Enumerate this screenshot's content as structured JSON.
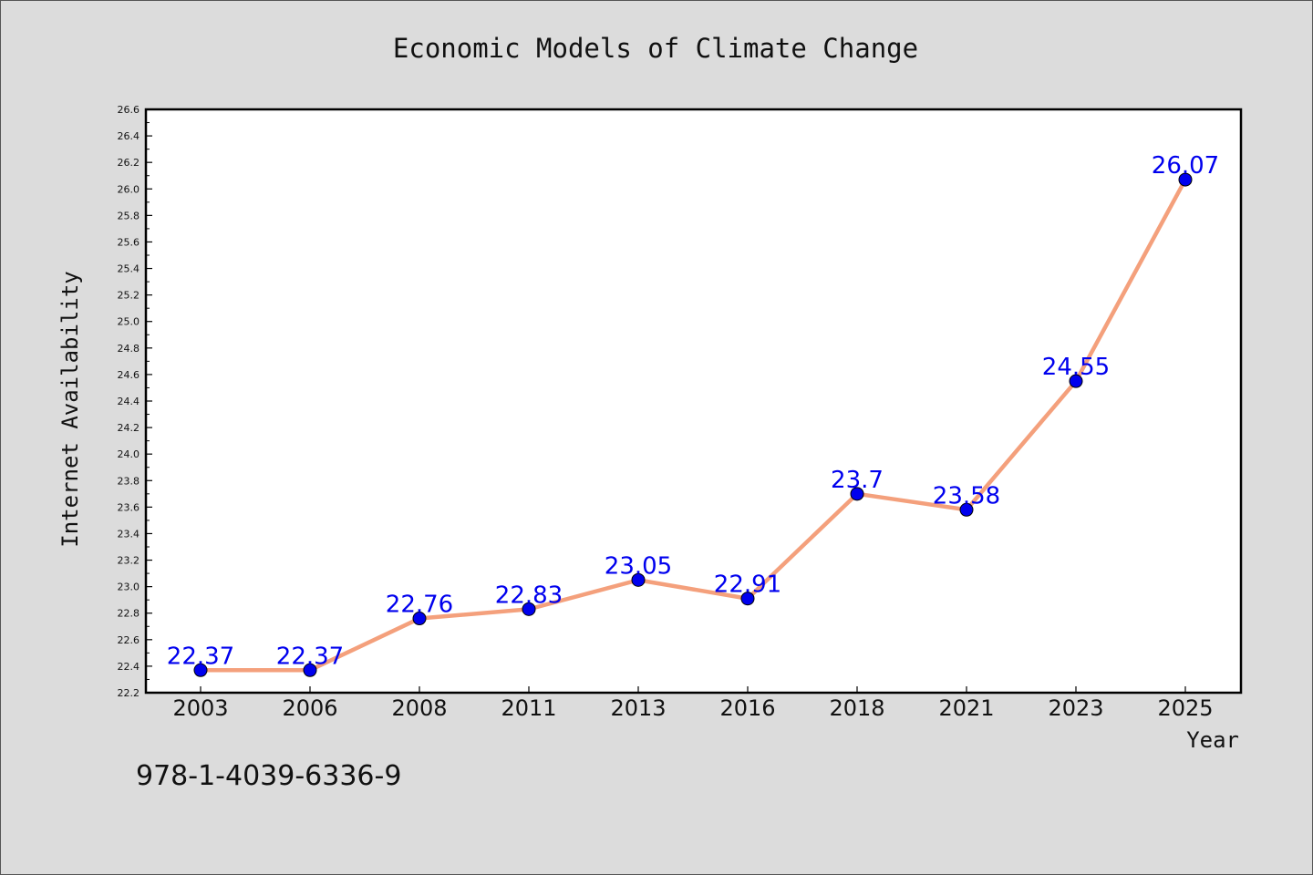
{
  "chart_data": {
    "type": "line",
    "title": "Economic Models of Climate Change",
    "xlabel": "Year",
    "ylabel": "Internet Availability",
    "categories": [
      "2003",
      "2006",
      "2008",
      "2011",
      "2013",
      "2016",
      "2018",
      "2021",
      "2023",
      "2025"
    ],
    "series": [
      {
        "values": [
          22.37,
          22.37,
          22.76,
          22.83,
          23.05,
          22.91,
          23.7,
          23.58,
          24.55,
          26.07
        ],
        "data_labels": [
          "22.37",
          "22.37",
          "22.76",
          "22.83",
          "23.05",
          "22.91",
          "23.7",
          "23.58",
          "24.55",
          "26.07"
        ]
      }
    ],
    "ylim": [
      22.2,
      26.6
    ],
    "yticks": [
      "22.2",
      "22.4",
      "22.6",
      "22.8",
      "23.0",
      "23.2",
      "23.4",
      "23.6",
      "23.8",
      "24.0",
      "24.2",
      "24.4",
      "24.6",
      "24.8",
      "25.0",
      "25.2",
      "25.4",
      "25.6",
      "25.8",
      "26.0",
      "26.2",
      "26.4",
      "26.6"
    ],
    "grid": false,
    "legend": "none",
    "colors": {
      "line": "#f4a07c",
      "marker": "#0000ee",
      "data_label": "#0000ee",
      "plot_background": "#ffffff",
      "figure_background": "#dcdcdc"
    }
  },
  "annotation": "978-1-4039-6336-9"
}
